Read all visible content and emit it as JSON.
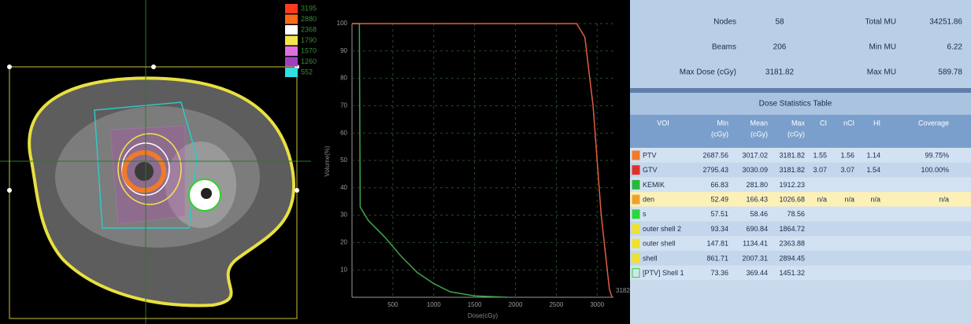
{
  "ct_view": {
    "isodose_legend": [
      {
        "color": "#ff3b1f",
        "label": "3195"
      },
      {
        "color": "#ff6a1a",
        "label": "2880"
      },
      {
        "color": "#ffffff",
        "label": "2368"
      },
      {
        "color": "#f4e64a",
        "label": "1790"
      },
      {
        "color": "#e070e0",
        "label": "1570"
      },
      {
        "color": "#a040c0",
        "label": "1260"
      },
      {
        "color": "#30e0e0",
        "label": "552"
      }
    ]
  },
  "dvh": {
    "type": "line",
    "y_label": "Volume(%)",
    "x_label": "Dose(cGy)",
    "end_label": "3182",
    "xlim": [
      0,
      3200
    ],
    "ylim": [
      0,
      100
    ],
    "xticks": [
      500,
      1000,
      1500,
      2000,
      2500,
      3000
    ],
    "yticks": [
      10,
      20,
      30,
      40,
      50,
      60,
      70,
      80,
      90,
      100
    ],
    "grid": true,
    "series": [
      {
        "color": "#3fa54a",
        "x": [
          0,
          90,
          100,
          200,
          400,
          600,
          800,
          1000,
          1200,
          1500,
          1900
        ],
        "values": [
          100,
          100,
          33,
          28,
          22,
          15,
          9,
          5,
          2,
          0.5,
          0
        ]
      },
      {
        "color": "#e0603f",
        "x": [
          0,
          2750,
          2850,
          2950,
          3050,
          3150,
          3182
        ],
        "values": [
          100,
          100,
          95,
          70,
          30,
          3,
          0
        ]
      }
    ]
  },
  "plan_summary": {
    "rows": [
      [
        "Nodes",
        "58",
        "Total MU",
        "34251.86"
      ],
      [
        "Beams",
        "206",
        "Min MU",
        "6.22"
      ],
      [
        "Max Dose (cGy)",
        "3181.82",
        "Max MU",
        "589.78"
      ]
    ]
  },
  "dose_table": {
    "title": "Dose Statistics Table",
    "highlighted_row": 3,
    "columns": [
      [
        "VOI"
      ],
      [
        "Min",
        "(cGy)"
      ],
      [
        "Mean",
        "(cGy)"
      ],
      [
        "Max",
        "(cGy)"
      ],
      [
        "CI"
      ],
      [
        "nCI"
      ],
      [
        "HI"
      ],
      [
        "Coverage"
      ]
    ],
    "rows": [
      {
        "color": "#f07a2a",
        "name": "PTV",
        "cells": [
          "2687.56",
          "3017.02",
          "3181.82",
          "1.55",
          "1.56",
          "1.14",
          "99.75%"
        ]
      },
      {
        "color": "#e0302a",
        "name": "GTV",
        "cells": [
          "2795.43",
          "3030.09",
          "3181.82",
          "3.07",
          "3.07",
          "1.54",
          "100.00%"
        ]
      },
      {
        "color": "#2ab83a",
        "name": "KEMIK",
        "cells": [
          "66.83",
          "281.80",
          "1912.23"
        ]
      },
      {
        "color": "#f0a030",
        "name": "den",
        "cells": [
          "52.49",
          "166.43",
          "1026.68",
          "n/a",
          "n/a",
          "n/a",
          "n/a"
        ]
      },
      {
        "color": "#2ad63a",
        "name": "s",
        "cells": [
          "57.51",
          "58.46",
          "78.56"
        ]
      },
      {
        "color": "#f0e030",
        "name": "outer shell 2",
        "cells": [
          "93.34",
          "690.84",
          "1864.72"
        ]
      },
      {
        "color": "#f0e030",
        "name": "outer shell",
        "cells": [
          "147.81",
          "1134.41",
          "2363.88"
        ]
      },
      {
        "color": "#f0e030",
        "name": "shell",
        "cells": [
          "861.71",
          "2007.31",
          "2894.45"
        ]
      },
      {
        "color": "#2fd62f",
        "outline": true,
        "name": "[PTV] Shell 1",
        "cells": [
          "73.36",
          "369.44",
          "1451.32"
        ]
      }
    ]
  }
}
